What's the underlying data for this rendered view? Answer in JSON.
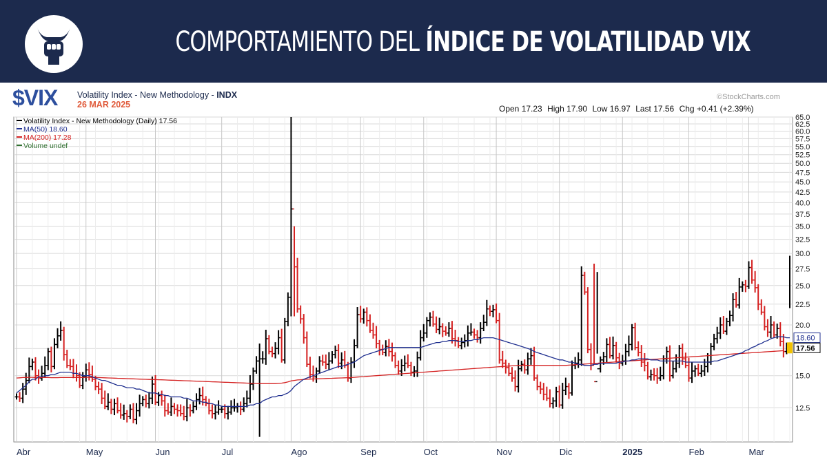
{
  "banner": {
    "title_light": "COMPORTAMIENTO DEL ",
    "title_bold": "ÍNDICE DE VOLATILIDAD VIX",
    "logo_icon": "bull-fist-icon"
  },
  "header": {
    "symbol": "$VIX",
    "description": "Volatility Index - New Methodology - ",
    "exchange": "INDX",
    "date": "26 MAR 2025",
    "credit": "©StockCharts.com",
    "open": "Open 17.23",
    "high": "High 17.90",
    "low": "Low 16.97",
    "last": "Last 17.56",
    "chg": "Chg +0.41 (+2.39%)"
  },
  "colors": {
    "banner_bg": "#1c2a4d",
    "symbol": "#2d4f9e",
    "date": "#e05a3a",
    "up_bar": "#000000",
    "down_bar": "#d42020",
    "ma50": "#1f2f8f",
    "ma200": "#d42020",
    "grid": "#d9d9d9",
    "last_box": "#f2c200"
  },
  "chart_data": {
    "type": "ohlc",
    "legend": [
      {
        "key": "price",
        "label": "Volatility Index - New Methodology (Daily) 17.56",
        "color": "#000000"
      },
      {
        "key": "ma50",
        "label": "MA(50) 18.60",
        "color": "#1f2f8f"
      },
      {
        "key": "ma200",
        "label": "MA(200) 17.28",
        "color": "#d42020"
      },
      {
        "key": "volume",
        "label": "Volume undef",
        "color": "#2f6f2f"
      }
    ],
    "y_scale": "log",
    "ylim": [
      10.3,
      65
    ],
    "y_ticks": [
      12.5,
      15.0,
      17.5,
      20.0,
      22.5,
      25.0,
      27.5,
      30.0,
      32.5,
      35.0,
      37.5,
      40.0,
      42.5,
      45.0,
      47.5,
      50.0,
      52.5,
      55.0,
      57.5,
      60.0,
      62.5,
      65.0
    ],
    "y_tick_labels": [
      "12.5",
      "15.0",
      "",
      "20.0",
      "22.5",
      "25.0",
      "27.5",
      "30.0",
      "32.5",
      "35.0",
      "37.5",
      "40.0",
      "42.5",
      "45.0",
      "47.5",
      "50.0",
      "52.5",
      "55.0",
      "57.5",
      "60.0",
      "62.5",
      "65.0"
    ],
    "x_months": [
      {
        "label": "Abr",
        "bold": false
      },
      {
        "label": "May",
        "bold": false
      },
      {
        "label": "Jun",
        "bold": false
      },
      {
        "label": "Jul",
        "bold": false
      },
      {
        "label": "Ago",
        "bold": false
      },
      {
        "label": "Sep",
        "bold": false
      },
      {
        "label": "Oct",
        "bold": false
      },
      {
        "label": "Nov",
        "bold": false
      },
      {
        "label": "Dic",
        "bold": false
      },
      {
        "label": "2025",
        "bold": true
      },
      {
        "label": "Feb",
        "bold": false
      },
      {
        "label": "Mar",
        "bold": false
      }
    ],
    "month_start_index": [
      0,
      22,
      44,
      65,
      87,
      109,
      129,
      152,
      172,
      192,
      213,
      232
    ],
    "closes": [
      13.3,
      13.2,
      13.9,
      14.6,
      15.8,
      16.2,
      15.0,
      14.8,
      15.2,
      15.9,
      17.2,
      15.8,
      17.9,
      18.8,
      19.4,
      16.9,
      15.9,
      15.8,
      15.2,
      15.0,
      14.2,
      14.9,
      15.5,
      15.1,
      14.7,
      14.1,
      13.9,
      13.2,
      12.6,
      12.9,
      12.4,
      12.8,
      12.3,
      12.0,
      12.1,
      11.9,
      12.4,
      11.7,
      12.3,
      12.8,
      13.1,
      12.8,
      13.2,
      14.3,
      12.9,
      13.4,
      13.0,
      12.3,
      12.2,
      12.6,
      12.4,
      12.3,
      12.1,
      11.9,
      12.5,
      12.3,
      12.6,
      13.1,
      13.4,
      13.1,
      12.8,
      12.3,
      12.1,
      12.2,
      12.4,
      12.4,
      12.1,
      12.2,
      12.5,
      12.5,
      12.6,
      12.4,
      12.8,
      13.2,
      14.3,
      15.4,
      16.3,
      16.5,
      16.5,
      18.5,
      17.2,
      17.0,
      17.5,
      18.6,
      16.4,
      20.4,
      23.4,
      38.6,
      27.8,
      21.9,
      20.7,
      18.6,
      16.0,
      15.1,
      14.9,
      15.4,
      16.3,
      16.2,
      16.0,
      16.3,
      16.9,
      17.3,
      16.1,
      16.4,
      15.9,
      14.8,
      16.2,
      17.8,
      21.2,
      20.7,
      21.5,
      20.5,
      19.4,
      18.9,
      18.0,
      17.4,
      17.1,
      17.7,
      17.2,
      16.8,
      15.9,
      15.4,
      15.9,
      16.1,
      15.9,
      15.3,
      15.4,
      16.6,
      18.6,
      19.1,
      20.5,
      20.9,
      20.1,
      19.5,
      19.8,
      19.3,
      19.1,
      19.6,
      18.5,
      18.3,
      17.8,
      18.1,
      18.3,
      19.1,
      19.2,
      18.9,
      18.6,
      19.6,
      20.3,
      21.9,
      21.6,
      21.8,
      20.5,
      16.4,
      16.1,
      15.7,
      15.2,
      14.8,
      14.1,
      15.6,
      16.0,
      15.5,
      16.5,
      16.8,
      14.8,
      14.1,
      13.9,
      13.5,
      13.2,
      12.8,
      13.0,
      13.7,
      12.7,
      13.8,
      14.1,
      13.6,
      15.9,
      16.1,
      16.4,
      26.5,
      24.1,
      17.4,
      15.9,
      14.5,
      15.6,
      16.4,
      16.7,
      17.9,
      16.8,
      17.8,
      16.6,
      16.1,
      16.3,
      17.2,
      17.9,
      19.7,
      17.6,
      17.1,
      16.2,
      15.9,
      14.9,
      15.1,
      15.0,
      14.8,
      15.0,
      16.5,
      17.2,
      15.0,
      15.6,
      16.1,
      17.5,
      16.5,
      15.9,
      14.8,
      15.4,
      15.6,
      15.2,
      15.4,
      15.8,
      16.2,
      17.7,
      18.5,
      19.1,
      20.0,
      19.3,
      20.4,
      21.1,
      23.1,
      22.4,
      24.8,
      25.1,
      24.9,
      27.7,
      25.8,
      24.7,
      22.5,
      21.5,
      19.8,
      19.2,
      20.0,
      18.9,
      19.6,
      18.2,
      17.2,
      17.2,
      17.6
    ],
    "ma50": [
      13.6,
      13.8,
      14.0,
      14.2,
      14.5,
      14.7,
      14.7,
      14.9,
      14.9,
      15.0,
      15.0,
      15.1,
      15.1,
      15.2,
      15.3,
      15.3,
      15.3,
      15.3,
      15.2,
      15.2,
      15.1,
      15.0,
      15.0,
      15.0,
      14.9,
      14.8,
      14.7,
      14.6,
      14.6,
      14.5,
      14.4,
      14.3,
      14.2,
      14.2,
      14.1,
      14.0,
      14.0,
      14.0,
      13.9,
      13.9,
      13.8,
      13.7,
      13.6,
      13.6,
      13.6,
      13.5,
      13.5,
      13.4,
      13.4,
      13.3,
      13.3,
      13.3,
      13.3,
      13.2,
      13.2,
      13.1,
      13.0,
      13.0,
      13.0,
      12.9,
      12.9,
      12.8,
      12.8,
      12.7,
      12.7,
      12.6,
      12.6,
      12.6,
      12.6,
      12.6,
      12.6,
      12.6,
      12.6,
      12.6,
      12.7,
      12.7,
      12.8,
      12.8,
      13.0,
      13.1,
      13.2,
      13.3,
      13.3,
      13.4,
      13.4,
      13.5,
      13.6,
      13.8,
      14.1,
      14.3,
      14.5,
      14.7,
      14.8,
      14.9,
      15.0,
      15.1,
      15.2,
      15.3,
      15.4,
      15.5,
      15.6,
      15.7,
      15.8,
      15.8,
      15.9,
      16.0,
      16.1,
      16.2,
      16.4,
      16.6,
      16.8,
      16.9,
      17.0,
      17.1,
      17.2,
      17.3,
      17.4,
      17.5,
      17.6,
      17.6,
      17.6,
      17.6,
      17.6,
      17.6,
      17.6,
      17.6,
      17.6,
      17.6,
      17.6,
      17.7,
      17.8,
      17.9,
      18.0,
      18.1,
      18.1,
      18.2,
      18.2,
      18.3,
      18.3,
      18.3,
      18.2,
      18.2,
      18.2,
      18.3,
      18.3,
      18.4,
      18.4,
      18.5,
      18.6,
      18.6,
      18.6,
      18.6,
      18.5,
      18.4,
      18.3,
      18.2,
      18.1,
      18.0,
      17.9,
      17.8,
      17.7,
      17.6,
      17.5,
      17.4,
      17.2,
      17.1,
      17.0,
      16.9,
      16.8,
      16.7,
      16.6,
      16.5,
      16.4,
      16.4,
      16.3,
      16.2,
      16.2,
      16.1,
      16.0,
      16.0,
      15.9,
      15.9,
      15.9,
      16.0,
      16.0,
      16.1,
      16.1,
      16.1,
      16.1,
      16.1,
      16.1,
      16.2,
      16.2,
      16.3,
      16.3,
      16.4,
      16.4,
      16.5,
      16.5,
      16.5,
      16.5,
      16.4,
      16.4,
      16.4,
      16.3,
      16.3,
      16.3,
      16.3,
      16.3,
      16.3,
      16.3,
      16.3,
      16.2,
      16.2,
      16.2,
      16.2,
      16.2,
      16.2,
      16.2,
      16.2,
      16.2,
      16.3,
      16.3,
      16.4,
      16.5,
      16.6,
      16.7,
      16.8,
      16.9,
      17.0,
      17.1,
      17.3,
      17.4,
      17.6,
      17.7,
      17.9,
      18.0,
      18.2,
      18.3,
      18.5,
      18.6,
      18.7,
      18.7,
      18.7,
      18.6,
      18.6
    ],
    "ma200": [
      14.8,
      14.82,
      14.84,
      14.85,
      14.86,
      14.86,
      14.85,
      14.85,
      14.85,
      14.85,
      14.84,
      14.83,
      14.83,
      14.83,
      14.84,
      14.84,
      14.84,
      14.84,
      14.84,
      14.84,
      14.85,
      14.85,
      14.86,
      14.86,
      14.85,
      14.85,
      14.84,
      14.83,
      14.82,
      14.81,
      14.8,
      14.79,
      14.78,
      14.77,
      14.76,
      14.75,
      14.74,
      14.73,
      14.72,
      14.71,
      14.7,
      14.69,
      14.68,
      14.68,
      14.67,
      14.66,
      14.65,
      14.64,
      14.63,
      14.62,
      14.61,
      14.6,
      14.59,
      14.58,
      14.57,
      14.56,
      14.55,
      14.54,
      14.53,
      14.52,
      14.51,
      14.5,
      14.49,
      14.48,
      14.47,
      14.46,
      14.45,
      14.44,
      14.43,
      14.42,
      14.41,
      14.4,
      14.39,
      14.38,
      14.37,
      14.36,
      14.35,
      14.34,
      14.34,
      14.34,
      14.34,
      14.34,
      14.34,
      14.36,
      14.38,
      14.42,
      14.48,
      14.56,
      14.6,
      14.64,
      14.66,
      14.68,
      14.7,
      14.71,
      14.72,
      14.73,
      14.74,
      14.75,
      14.76,
      14.77,
      14.78,
      14.79,
      14.8,
      14.81,
      14.82,
      14.83,
      14.84,
      14.86,
      14.88,
      14.9,
      14.92,
      14.94,
      14.96,
      14.98,
      15.0,
      15.02,
      15.04,
      15.06,
      15.08,
      15.1,
      15.12,
      15.14,
      15.16,
      15.18,
      15.2,
      15.22,
      15.24,
      15.26,
      15.28,
      15.3,
      15.32,
      15.34,
      15.36,
      15.38,
      15.4,
      15.42,
      15.44,
      15.46,
      15.48,
      15.5,
      15.52,
      15.54,
      15.56,
      15.58,
      15.6,
      15.62,
      15.64,
      15.66,
      15.68,
      15.7,
      15.72,
      15.74,
      15.76,
      15.78,
      15.8,
      15.82,
      15.84,
      15.86,
      15.88,
      15.9,
      15.9,
      15.9,
      15.9,
      15.9,
      15.9,
      15.9,
      15.9,
      15.9,
      15.9,
      15.9,
      15.9,
      15.9,
      15.9,
      15.9,
      15.9,
      15.92,
      15.94,
      15.96,
      15.98,
      16.0,
      16.02,
      16.04,
      16.06,
      16.08,
      16.1,
      16.12,
      16.14,
      16.16,
      16.18,
      16.2,
      16.22,
      16.24,
      16.26,
      16.28,
      16.3,
      16.32,
      16.34,
      16.36,
      16.38,
      16.4,
      16.42,
      16.44,
      16.46,
      16.48,
      16.5,
      16.52,
      16.54,
      16.56,
      16.58,
      16.6,
      16.62,
      16.64,
      16.66,
      16.68,
      16.7,
      16.72,
      16.74,
      16.76,
      16.78,
      16.8,
      16.82,
      16.84,
      16.86,
      16.88,
      16.9,
      16.92,
      16.94,
      16.96,
      16.98,
      17.0,
      17.02,
      17.04,
      17.06,
      17.08,
      17.1,
      17.12,
      17.14,
      17.16,
      17.18,
      17.2,
      17.22,
      17.24,
      17.26,
      17.28
    ],
    "spikes": [
      {
        "index": 87,
        "high": 65.0,
        "low": 21.0
      },
      {
        "index": 77,
        "high": 18.0,
        "low": 10.6
      },
      {
        "index": 88,
        "high": 35.0,
        "low": 21.0
      },
      {
        "index": 183,
        "high": 28.3,
        "low": 16.0
      },
      {
        "index": 184,
        "high": 27.0,
        "low": 17.0
      },
      {
        "index": 245,
        "high": 29.6,
        "low": 22.0
      }
    ],
    "last_value_labels": [
      {
        "series": "ma50",
        "value": 18.6,
        "text": "18.60"
      },
      {
        "series": "price",
        "value": 17.56,
        "text": "17.56"
      }
    ]
  }
}
